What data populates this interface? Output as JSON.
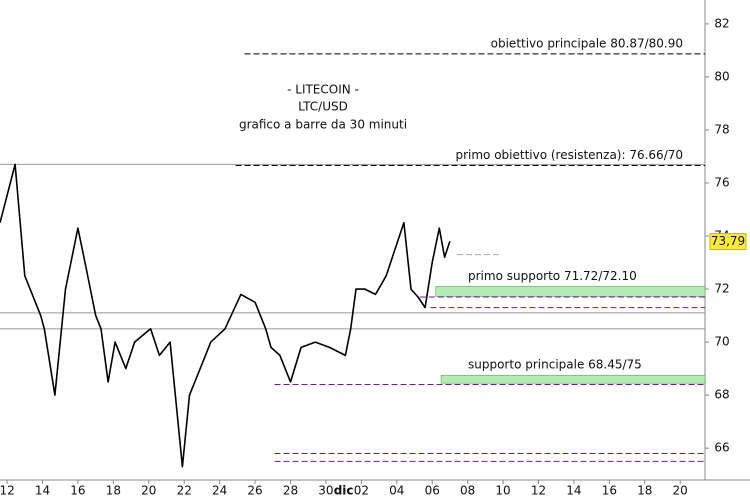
{
  "chart_data": {
    "type": "line",
    "title_lines": [
      "- LITECOIN -",
      "LTC/USD",
      "grafico a barre da 30 minuti"
    ],
    "month_label": "dic",
    "xlim": [
      -0.4,
      39.4
    ],
    "xticks": [
      {
        "value": 0,
        "label": "12"
      },
      {
        "value": 2,
        "label": "14"
      },
      {
        "value": 4,
        "label": "16"
      },
      {
        "value": 6,
        "label": "18"
      },
      {
        "value": 8,
        "label": "20"
      },
      {
        "value": 10,
        "label": "22"
      },
      {
        "value": 12,
        "label": "24"
      },
      {
        "value": 14,
        "label": "26"
      },
      {
        "value": 16,
        "label": "28"
      },
      {
        "value": 18,
        "label": "30"
      },
      {
        "value": 20,
        "label": "02"
      },
      {
        "value": 22,
        "label": "04"
      },
      {
        "value": 24,
        "label": "06"
      },
      {
        "value": 26,
        "label": "08"
      },
      {
        "value": 28,
        "label": "10"
      },
      {
        "value": 30,
        "label": "12"
      },
      {
        "value": 32,
        "label": "14"
      },
      {
        "value": 34,
        "label": "16"
      },
      {
        "value": 36,
        "label": "18"
      },
      {
        "value": 38,
        "label": "20"
      }
    ],
    "ylim": [
      64.8,
      82.9
    ],
    "yticks": [
      66,
      68,
      70,
      72,
      74,
      76,
      78,
      80,
      82
    ],
    "series": [
      {
        "name": "LTC/USD",
        "color": "#000000",
        "x": [
          -0.4,
          0.45,
          1.0,
          1.9,
          2.1,
          2.7,
          3.3,
          4.0,
          4.4,
          5.0,
          5.3,
          5.7,
          6.1,
          6.7,
          7.2,
          8.1,
          8.6,
          9.2,
          9.9,
          10.3,
          10.9,
          11.5,
          12.3,
          13.2,
          14.0,
          14.6,
          14.9,
          15.4,
          16.0,
          16.6,
          17.4,
          18.2,
          19.1,
          19.4,
          19.7,
          20.2,
          20.8,
          21.4,
          21.9,
          22.4,
          22.8,
          23.2,
          23.6,
          24.0,
          24.4,
          24.7,
          25.0
        ],
        "values": [
          74.5,
          76.7,
          72.5,
          71,
          70.5,
          68,
          72,
          74.3,
          73,
          71,
          70.5,
          68.5,
          70,
          69,
          70,
          70.5,
          69.5,
          70,
          65.3,
          68,
          69,
          70,
          70.5,
          71.8,
          71.5,
          70.5,
          69.8,
          69.5,
          68.5,
          69.8,
          70,
          69.8,
          69.5,
          70.5,
          72,
          72,
          71.8,
          72.5,
          73.5,
          74.5,
          72,
          71.7,
          71.3,
          73,
          74.3,
          73.2,
          73.8
        ]
      }
    ],
    "last_price": {
      "value": 73.79,
      "label": "73,79"
    },
    "levels": [
      {
        "value": 80.87,
        "from": 13.4,
        "color": "#000000",
        "label": "obiettivo principale 80.87/80.90"
      },
      {
        "value": 76.66,
        "from": 12.9,
        "color": "#000000",
        "label": "primo obiettivo (resistenza): 76.66/70"
      },
      {
        "value": 73.3,
        "from": 25.4,
        "to": 27.9,
        "color": "#aaaaaa"
      },
      {
        "value": 71.7,
        "from": 23.3,
        "color": "#6a1b9a"
      },
      {
        "value": 71.3,
        "from": 23.9,
        "color": "#6a1b9a"
      },
      {
        "value": 68.4,
        "from": 15.1,
        "color": "#6a1b9a"
      },
      {
        "value": 65.8,
        "from": 15.1,
        "color": "#6a1b9a"
      },
      {
        "value": 65.5,
        "from": 15.1,
        "color": "#6a1b9a"
      }
    ],
    "solid_lines": [
      76.7,
      71.1,
      70.5
    ],
    "bands": [
      {
        "low": 71.72,
        "high": 72.1,
        "from": 24.2,
        "label": "primo supporto 71.72/72.10"
      },
      {
        "low": 68.45,
        "high": 68.75,
        "from": 24.5,
        "label": "supporto principale 68.45/75"
      }
    ]
  }
}
